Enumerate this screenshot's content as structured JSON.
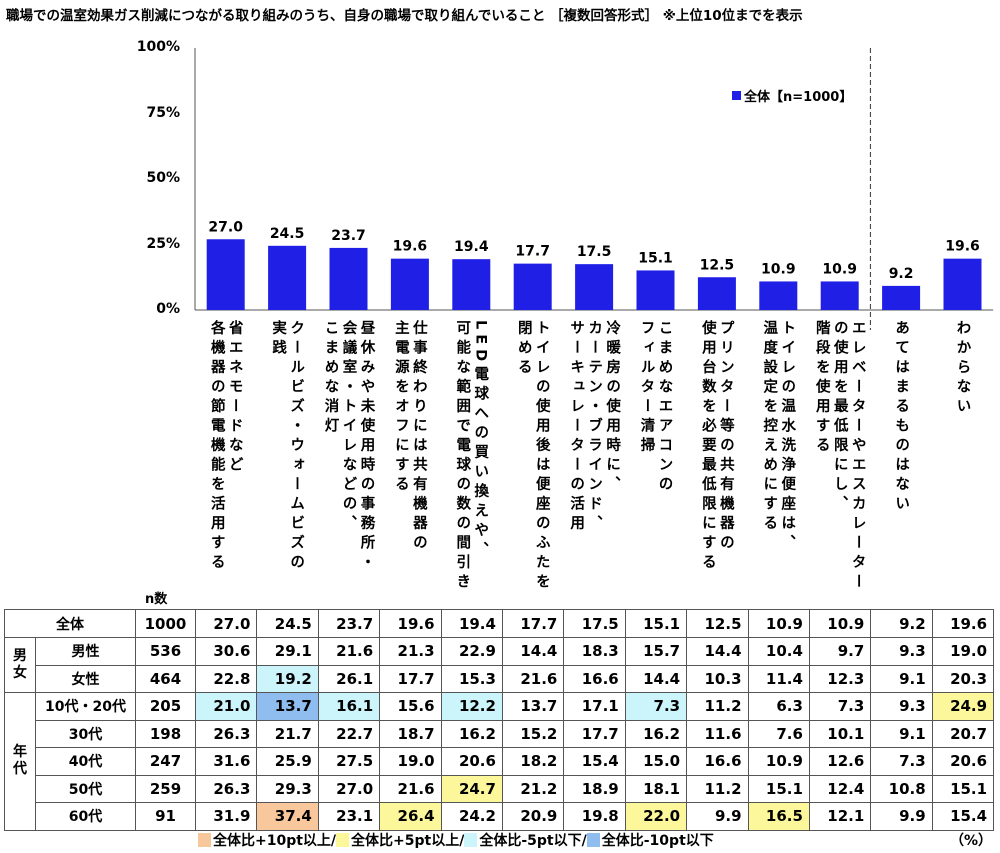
{
  "title": "職場での温室効果ガス削減につながる取り組みのうち、自身の職場で取り組んでいること ［複数回答形式］ ※上位10位までを表示",
  "chart_data": {
    "type": "bar",
    "ylim": [
      0,
      100
    ],
    "yticks": [
      "100%",
      "75%",
      "50%",
      "25%",
      "0%"
    ],
    "bar_color": "#1f1fe6",
    "legend": "全体【n=1000】",
    "categories": [
      [
        "省エネモードなど",
        "各機器の節電機能を活用する"
      ],
      [
        "クールビズ・ウォームビズの",
        "実践"
      ],
      [
        "昼休みや未使用時の事務所・",
        "会議室・トイレなどの、",
        "こまめな消灯"
      ],
      [
        "仕事終わりには共有機器の",
        "主電源をオフにする"
      ],
      [
        "LED電球への買い換えや、",
        "可能な範囲で電球の数の間引き"
      ],
      [
        "トイレの使用後は便座のふたを",
        "閉める"
      ],
      [
        "冷暖房の使用時に、",
        "カーテン・ブラインド、",
        "サーキュレーターの活用"
      ],
      [
        "こまめなエアコンの",
        "フィルター清掃"
      ],
      [
        "プリンター等の共有機器の",
        "使用台数を必要最低限にする"
      ],
      [
        "トイレの温水洗浄便座は、",
        "温度設定を控えめにする"
      ],
      [
        "エレベーターやエスカレーター",
        "の使用を最低限にし、",
        "階段を使用する"
      ],
      [
        "あてはまるものはない"
      ],
      [
        "わからない"
      ]
    ],
    "values": [
      27.0,
      24.5,
      23.7,
      19.6,
      19.4,
      17.7,
      17.5,
      15.1,
      12.5,
      10.9,
      10.9,
      9.2,
      19.6
    ]
  },
  "table": {
    "n_header": "n数",
    "legend_colors": {
      "p10": "#f8c79b",
      "p5": "#fbf79a",
      "m5": "#ccf5fb",
      "m10": "#8fbdf0"
    },
    "rows": [
      {
        "group": "",
        "label": "全体",
        "n": "1000",
        "values": [
          "27.0",
          "24.5",
          "23.7",
          "19.6",
          "19.4",
          "17.7",
          "17.5",
          "15.1",
          "12.5",
          "10.9",
          "10.9",
          "9.2",
          "19.6"
        ],
        "hl": {}
      },
      {
        "group": "男女",
        "label": "男性",
        "n": "536",
        "values": [
          "30.6",
          "29.1",
          "21.6",
          "21.3",
          "22.9",
          "14.4",
          "18.3",
          "15.7",
          "14.4",
          "10.4",
          "9.7",
          "9.3",
          "19.0"
        ],
        "hl": {}
      },
      {
        "group": "",
        "label": "女性",
        "n": "464",
        "values": [
          "22.8",
          "19.2",
          "26.1",
          "17.7",
          "15.3",
          "21.6",
          "16.6",
          "14.4",
          "10.3",
          "11.4",
          "12.3",
          "9.1",
          "20.3"
        ],
        "hl": {
          "1": "m5"
        }
      },
      {
        "group": "年代",
        "label": "10代・20代",
        "n": "205",
        "values": [
          "21.0",
          "13.7",
          "16.1",
          "15.6",
          "12.2",
          "13.7",
          "17.1",
          "7.3",
          "11.2",
          "6.3",
          "7.3",
          "9.3",
          "24.9"
        ],
        "hl": {
          "0": "m5",
          "1": "m10",
          "2": "m5",
          "4": "m5",
          "7": "m5",
          "12": "p5"
        }
      },
      {
        "group": "",
        "label": "30代",
        "n": "198",
        "values": [
          "26.3",
          "21.7",
          "22.7",
          "18.7",
          "16.2",
          "15.2",
          "17.7",
          "16.2",
          "11.6",
          "7.6",
          "10.1",
          "9.1",
          "20.7"
        ],
        "hl": {}
      },
      {
        "group": "",
        "label": "40代",
        "n": "247",
        "values": [
          "31.6",
          "25.9",
          "27.5",
          "19.0",
          "20.6",
          "18.2",
          "15.4",
          "15.0",
          "16.6",
          "10.9",
          "12.6",
          "7.3",
          "20.6"
        ],
        "hl": {}
      },
      {
        "group": "",
        "label": "50代",
        "n": "259",
        "values": [
          "26.3",
          "29.3",
          "27.0",
          "21.6",
          "24.7",
          "21.2",
          "18.9",
          "18.1",
          "11.2",
          "15.1",
          "12.4",
          "10.8",
          "15.1"
        ],
        "hl": {
          "4": "p5"
        }
      },
      {
        "group": "",
        "label": "60代",
        "n": "91",
        "values": [
          "31.9",
          "37.4",
          "23.1",
          "26.4",
          "24.2",
          "20.9",
          "19.8",
          "22.0",
          "9.9",
          "16.5",
          "12.1",
          "9.9",
          "15.4"
        ],
        "hl": {
          "1": "p10",
          "3": "p5",
          "7": "p5",
          "9": "p5"
        }
      }
    ]
  },
  "keys": [
    {
      "cls": "p10",
      "label": "全体比+10pt以上/"
    },
    {
      "cls": "p5",
      "label": "全体比+5pt以上/"
    },
    {
      "cls": "m5",
      "label": "全体比-5pt以下/"
    },
    {
      "cls": "m10",
      "label": "全体比-10pt以下"
    }
  ],
  "unit": "（%）"
}
